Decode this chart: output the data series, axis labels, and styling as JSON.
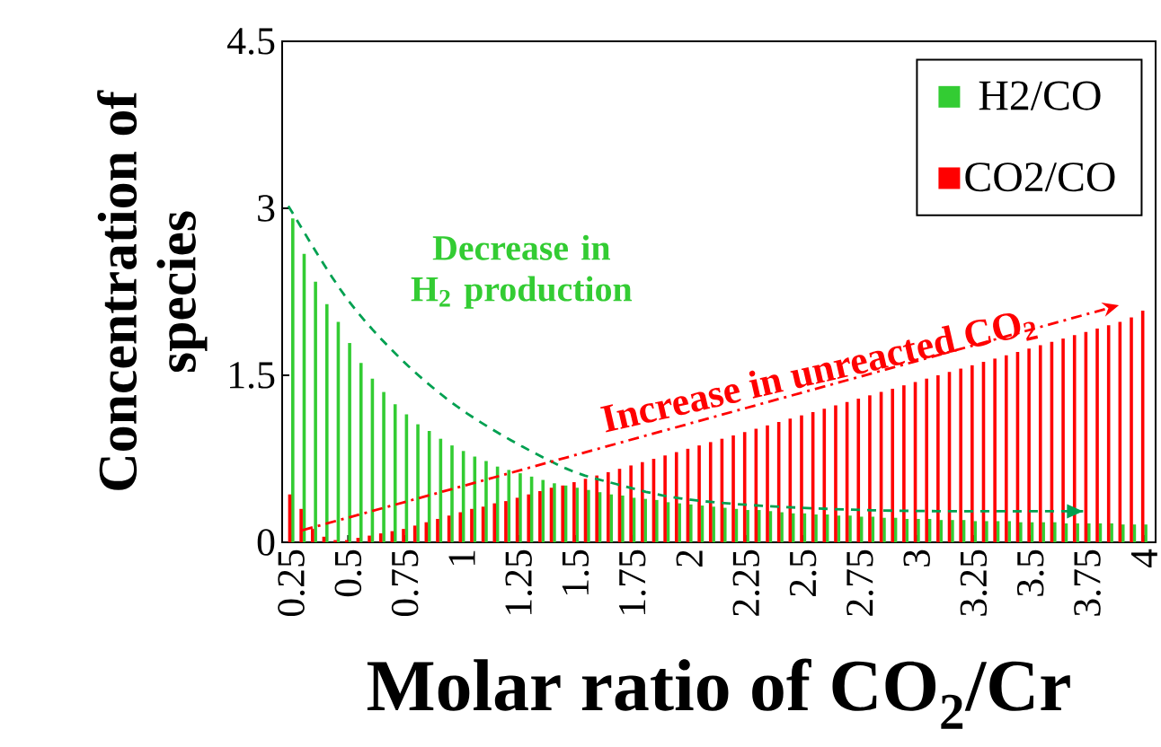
{
  "chart_data": {
    "type": "bar",
    "xlabel": "Molar ratio of CO$_{2}$/Cr",
    "ylabel": "Concentration of species",
    "x": [
      0.25,
      0.3,
      0.35,
      0.4,
      0.45,
      0.5,
      0.55,
      0.6,
      0.65,
      0.7,
      0.75,
      0.8,
      0.85,
      0.9,
      0.95,
      1.0,
      1.05,
      1.1,
      1.15,
      1.2,
      1.25,
      1.3,
      1.35,
      1.4,
      1.45,
      1.5,
      1.55,
      1.6,
      1.65,
      1.7,
      1.75,
      1.8,
      1.85,
      1.9,
      1.95,
      2.0,
      2.05,
      2.1,
      2.15,
      2.2,
      2.25,
      2.3,
      2.35,
      2.4,
      2.45,
      2.5,
      2.55,
      2.6,
      2.65,
      2.7,
      2.75,
      2.8,
      2.85,
      2.9,
      2.95,
      3.0,
      3.05,
      3.1,
      3.15,
      3.2,
      3.25,
      3.3,
      3.35,
      3.4,
      3.45,
      3.5,
      3.55,
      3.6,
      3.65,
      3.7,
      3.75,
      3.8,
      3.85,
      3.9,
      3.95,
      4.0
    ],
    "series": [
      {
        "name": "H2/CO",
        "color": "#33cc33",
        "values": [
          2.91,
          2.59,
          2.34,
          2.14,
          1.98,
          1.79,
          1.61,
          1.47,
          1.35,
          1.24,
          1.15,
          1.06,
          1.0,
          0.93,
          0.87,
          0.82,
          0.77,
          0.73,
          0.68,
          0.65,
          0.62,
          0.59,
          0.56,
          0.53,
          0.51,
          0.49,
          0.47,
          0.45,
          0.43,
          0.42,
          0.4,
          0.39,
          0.38,
          0.36,
          0.35,
          0.34,
          0.33,
          0.32,
          0.31,
          0.3,
          0.29,
          0.29,
          0.28,
          0.27,
          0.26,
          0.26,
          0.25,
          0.25,
          0.24,
          0.24,
          0.23,
          0.23,
          0.22,
          0.22,
          0.21,
          0.21,
          0.21,
          0.2,
          0.2,
          0.2,
          0.19,
          0.19,
          0.19,
          0.19,
          0.18,
          0.18,
          0.18,
          0.18,
          0.17,
          0.17,
          0.17,
          0.17,
          0.17,
          0.16,
          0.16,
          0.16
        ]
      },
      {
        "name": "CO2/CO",
        "color": "#ff0000",
        "values": [
          0.43,
          0.3,
          0.12,
          0.05,
          0.02,
          0.02,
          0.04,
          0.06,
          0.08,
          0.1,
          0.12,
          0.15,
          0.18,
          0.21,
          0.24,
          0.27,
          0.3,
          0.32,
          0.35,
          0.37,
          0.4,
          0.43,
          0.46,
          0.49,
          0.51,
          0.54,
          0.57,
          0.6,
          0.63,
          0.66,
          0.69,
          0.72,
          0.75,
          0.78,
          0.81,
          0.84,
          0.87,
          0.9,
          0.93,
          0.96,
          0.99,
          1.02,
          1.05,
          1.08,
          1.11,
          1.14,
          1.17,
          1.2,
          1.23,
          1.26,
          1.29,
          1.32,
          1.35,
          1.38,
          1.41,
          1.44,
          1.47,
          1.5,
          1.53,
          1.56,
          1.59,
          1.62,
          1.65,
          1.68,
          1.71,
          1.74,
          1.77,
          1.8,
          1.83,
          1.86,
          1.89,
          1.92,
          1.95,
          1.98,
          2.02,
          2.08
        ]
      }
    ],
    "annotations": [
      "Decrease in H$_{2}$ production",
      "Increase in unreacted CO$_{2}$"
    ],
    "xlim": [
      0.21,
      4.05
    ],
    "ylim": [
      0,
      4.5
    ],
    "xticks": [
      0.25,
      0.5,
      0.75,
      1,
      1.25,
      1.5,
      1.75,
      2,
      2.25,
      2.5,
      2.75,
      3,
      3.25,
      3.5,
      3.75,
      4
    ],
    "yticks": [
      0,
      1.5,
      3,
      4.5
    ],
    "legend": "top right"
  }
}
